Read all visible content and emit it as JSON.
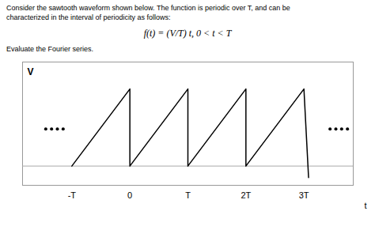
{
  "chart_data": {
    "type": "line",
    "title": "Consider the sawtooth waveform shown below. The function is periodic over T, and can be",
    "subtitle": "characterized in the interval of periodicity as follows:",
    "annotations": [
      "f(t) = (V/T) t, 0 < t < T",
      "Evaluate the Fourier series."
    ],
    "xlabel": "t",
    "ylabel": "V",
    "xlim": [
      -1.85,
      3.85
    ],
    "ylim": [
      -0.25,
      1.35
    ],
    "xticks": [
      {
        "value": -1,
        "label": "-T"
      },
      0,
      {
        "value": 1,
        "label": "T"
      },
      {
        "value": 2,
        "label": "2T"
      },
      {
        "value": 3,
        "label": "3T"
      }
    ],
    "tick_labels": "x",
    "grid": false,
    "series": [
      {
        "type": "line",
        "color": "#000000",
        "x": [
          -1,
          0,
          0,
          1,
          1,
          2,
          2,
          3,
          3.08
        ],
        "values": [
          0,
          1,
          0,
          1,
          0,
          1,
          0,
          1,
          -0.15
        ]
      },
      {
        "type": "scatter",
        "color": "#000000",
        "marker": "o",
        "x": [
          -1.45,
          -1.35,
          -1.25,
          -1.15,
          3.45,
          3.55,
          3.65,
          3.75
        ],
        "values": [
          0.48,
          0.48,
          0.48,
          0.48,
          0.48,
          0.48,
          0.48,
          0.48
        ]
      }
    ]
  }
}
